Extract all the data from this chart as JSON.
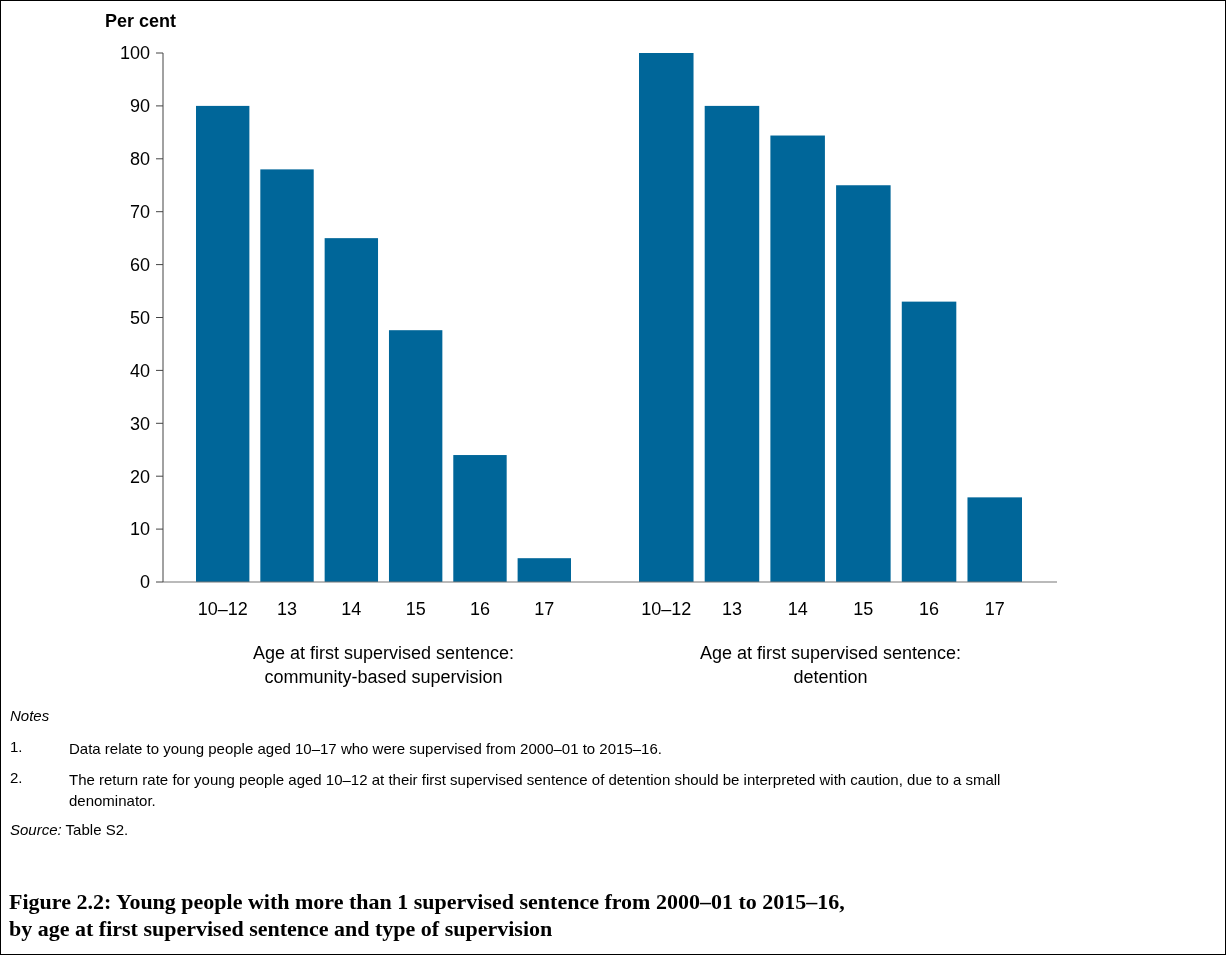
{
  "chart_data": [
    {
      "type": "bar",
      "title": "Figure 2.2: Young people with more than 1 supervised sentence from 2000–01 to 2015–16, by age at first supervised sentence and type of supervision",
      "ylabel": "Per cent",
      "xlabel": "Age at first supervised sentence: community-based supervision",
      "categories": [
        "10–12",
        "13",
        "14",
        "15",
        "16",
        "17"
      ],
      "values": [
        90,
        78,
        65,
        47.6,
        24,
        4.5
      ],
      "color": "#006699",
      "ylim": [
        0,
        100
      ],
      "yticks": [
        0,
        10,
        20,
        30,
        40,
        50,
        60,
        70,
        80,
        90,
        100
      ],
      "grid": false,
      "annotations": [
        "Notes",
        "1. Data relate to young people aged 10–17 who were supervised from 2000–01 to 2015–16.",
        "2. The return rate for young people aged 10–12 at their first supervised sentence of detention should be interpreted with caution, due to a small denominator.",
        "Source: Table S2."
      ]
    },
    {
      "type": "bar",
      "xlabel": "Age at first supervised sentence: detention",
      "categories": [
        "10–12",
        "13",
        "14",
        "15",
        "16",
        "17"
      ],
      "values": [
        100,
        90,
        84.4,
        75,
        53,
        16
      ],
      "color": "#006699",
      "ylim": [
        0,
        100
      ],
      "tick_labels": "x",
      "grid": false
    }
  ]
}
